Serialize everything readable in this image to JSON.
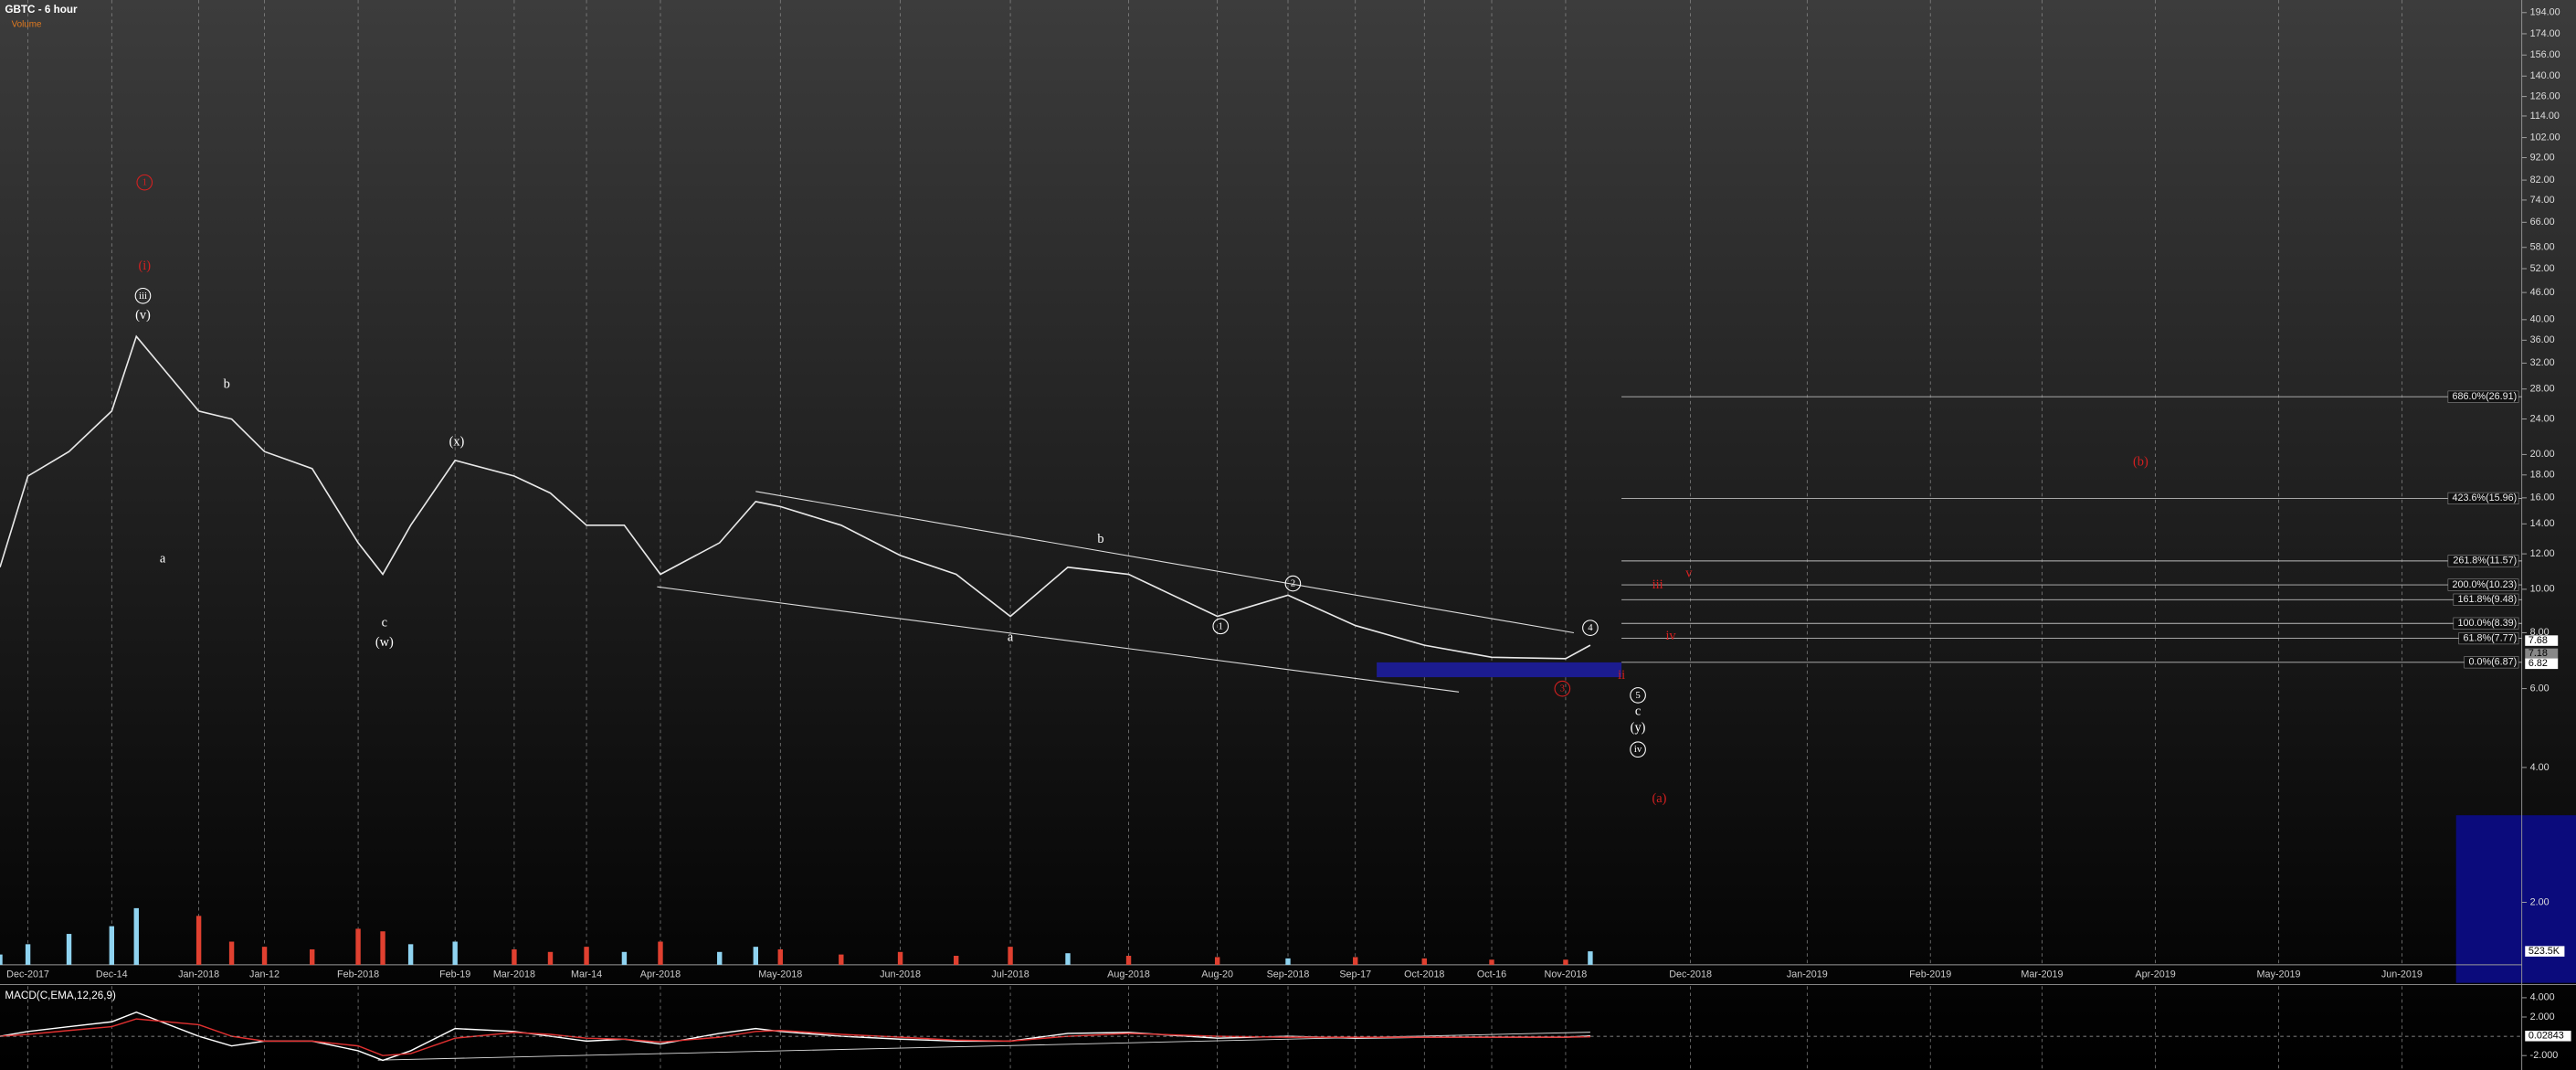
{
  "chart_data": [
    {
      "type": "line",
      "title": "GBTC - 6 hour",
      "subtitle": "Volume",
      "log_scale": true,
      "grid": true,
      "color": "#e8e8e8",
      "categories": [
        null,
        "Dec-2017",
        null,
        "Dec-14",
        null,
        "Jan-2018",
        null,
        "Jan-12",
        null,
        "Feb-2018",
        null,
        null,
        "Feb-19",
        "Mar-2018",
        null,
        "Mar-14",
        null,
        "Apr-2018",
        null,
        null,
        "May-2018",
        null,
        "Jun-2018",
        null,
        "Jul-2018",
        null,
        "Aug-2018",
        "Aug-20",
        "Sep-2018",
        "Sep-17",
        "Oct-2018",
        "Oct-16",
        "Nov-2018",
        null,
        "Dec-2018",
        "Jan-2019",
        "Feb-2019",
        "Mar-2019",
        "Apr-2019",
        "May-2019",
        "Jun-2019"
      ],
      "values": [
        11.2,
        17.9,
        20.3,
        25,
        36.7,
        25,
        24,
        20.3,
        18.6,
        12.7,
        10.8,
        13.9,
        19.4,
        17.9,
        16.4,
        13.9,
        13.9,
        10.8,
        12.7,
        15.7,
        15.3,
        13.9,
        11.9,
        10.8,
        8.7,
        11.2,
        10.8,
        8.7,
        9.7,
        8.3,
        7.5,
        7.05,
        7.0,
        7.5,
        null,
        null,
        null,
        null,
        null,
        null,
        null
      ],
      "ylim": [
        1.45,
        207
      ],
      "yticks": [
        {
          "value": 194,
          "label": "194.00"
        },
        {
          "value": 174,
          "label": "174.00"
        },
        {
          "value": 156,
          "label": "156.00"
        },
        {
          "value": 140,
          "label": "140.00"
        },
        {
          "value": 126,
          "label": "126.00"
        },
        {
          "value": 114,
          "label": "114.00"
        },
        {
          "value": 102,
          "label": "102.00"
        },
        {
          "value": 92,
          "label": "92.00"
        },
        {
          "value": 82,
          "label": "82.00"
        },
        {
          "value": 74,
          "label": "74.00"
        },
        {
          "value": 66,
          "label": "66.00"
        },
        {
          "value": 58,
          "label": "58.00"
        },
        {
          "value": 52,
          "label": "52.00"
        },
        {
          "value": 46,
          "label": "46.00"
        },
        {
          "value": 40,
          "label": "40.00"
        },
        {
          "value": 36,
          "label": "36.00"
        },
        {
          "value": 32,
          "label": "32.00"
        },
        {
          "value": 28,
          "label": "28.00"
        },
        {
          "value": 24,
          "label": "24.00"
        },
        {
          "value": 20,
          "label": "20.00"
        },
        {
          "value": 18,
          "label": "18.00"
        },
        {
          "value": 16,
          "label": "16.00"
        },
        {
          "value": 14,
          "label": "14.00"
        },
        {
          "value": 12,
          "label": "12.00"
        },
        {
          "value": 10,
          "label": "10.00"
        },
        {
          "value": 8,
          "label": "8.00"
        },
        {
          "value": 6,
          "label": "6.00"
        },
        {
          "value": 4,
          "label": "4.00"
        },
        {
          "value": 2,
          "label": "2.00"
        }
      ],
      "fib_levels": [
        {
          "value": 26.91,
          "label": "686.0%(26.91)"
        },
        {
          "value": 15.96,
          "label": "423.6%(15.96)"
        },
        {
          "value": 11.57,
          "label": "261.8%(11.57)"
        },
        {
          "value": 10.23,
          "label": "200.0%(10.23)"
        },
        {
          "value": 9.48,
          "label": "161.8%(9.48)"
        },
        {
          "value": 8.39,
          "label": "100.0%(8.39)"
        },
        {
          "value": 7.77,
          "label": "61.8%(7.77)"
        },
        {
          "value": 6.87,
          "label": "0.0%(6.87)"
        }
      ],
      "price_tags": [
        7.68,
        7.18,
        6.82
      ],
      "annotations": [
        {
          "text": "1",
          "color": "#d42020",
          "circled": true
        },
        {
          "text": "(i)",
          "color": "#d42020"
        },
        {
          "text": "iii",
          "color": "#ffffff",
          "circled": true
        },
        {
          "text": "(v)",
          "color": "#ffffff"
        },
        {
          "text": "b",
          "color": "#ffffff"
        },
        {
          "text": "a",
          "color": "#ffffff"
        },
        {
          "text": "c",
          "color": "#ffffff"
        },
        {
          "text": "(w)",
          "color": "#ffffff"
        },
        {
          "text": "(x)",
          "color": "#ffffff"
        },
        {
          "text": "b",
          "color": "#ffffff"
        },
        {
          "text": "a",
          "color": "#ffffff"
        },
        {
          "text": "1",
          "color": "#ffffff",
          "circled": true
        },
        {
          "text": "2",
          "color": "#ffffff",
          "circled": true
        },
        {
          "text": "4",
          "color": "#ffffff",
          "circled": true
        },
        {
          "text": "3",
          "color": "#d42020",
          "circled": true
        },
        {
          "text": "ii",
          "color": "#d42020"
        },
        {
          "text": "5",
          "color": "#ffffff",
          "circled": true
        },
        {
          "text": "c",
          "color": "#ffffff"
        },
        {
          "text": "(y)",
          "color": "#ffffff"
        },
        {
          "text": "iv",
          "color": "#ffffff",
          "circled": true
        },
        {
          "text": "iii",
          "color": "#d42020"
        },
        {
          "text": "v",
          "color": "#d42020"
        },
        {
          "text": "iv",
          "color": "#d42020"
        },
        {
          "text": "(a)",
          "color": "#d42020"
        },
        {
          "text": "(b)",
          "color": "#d42020"
        }
      ]
    },
    {
      "type": "bar",
      "up_color": "#8fd3f0",
      "down_color": "#e04030",
      "values": [
        400,
        800,
        1200,
        1500,
        2200,
        1900,
        900,
        700,
        600,
        1400,
        1300,
        800,
        900,
        600,
        500,
        700,
        500,
        900,
        500,
        700,
        600,
        400,
        500,
        350,
        700,
        450,
        350,
        300,
        250,
        300,
        250,
        200,
        200,
        523.5
      ],
      "ylim": [
        0,
        3000
      ],
      "last_tag": {
        "value": 523.5,
        "label": "523.5K"
      }
    },
    {
      "type": "line",
      "title": "MACD(C,EMA,12,26,9)",
      "series": [
        {
          "color": "#ffffff",
          "values": [
            0,
            0.5,
            1,
            1.5,
            2.5,
            0,
            -1,
            -0.5,
            -0.5,
            -1.5,
            -2.5,
            -1.5,
            0.8,
            0.5,
            0,
            -0.5,
            -0.3,
            -0.8,
            0.3,
            0.8,
            0.5,
            0,
            -0.3,
            -0.5,
            -0.5,
            0.3,
            0.4,
            -0.2,
            0,
            -0.2,
            -0.1,
            -0.1,
            -0.1,
            0.03
          ]
        },
        {
          "color": "#e03030",
          "values": [
            0,
            0.2,
            0.6,
            1,
            1.8,
            1.2,
            0,
            -0.5,
            -0.5,
            -1,
            -2,
            -1.8,
            -0.2,
            0.4,
            0.2,
            -0.2,
            -0.3,
            -0.6,
            -0.1,
            0.5,
            0.6,
            0.2,
            -0.1,
            -0.4,
            -0.5,
            0,
            0.3,
            0,
            -0.1,
            -0.1,
            -0.1,
            -0.1,
            -0.1,
            -0.05
          ]
        }
      ],
      "ylim": [
        -3.5,
        5.2
      ],
      "yticks": [
        {
          "value": 4,
          "label": "4.000"
        },
        {
          "value": 2,
          "label": "2.000"
        },
        {
          "value": -2,
          "label": "-2.000"
        }
      ],
      "last_tag": 0.02843
    }
  ]
}
